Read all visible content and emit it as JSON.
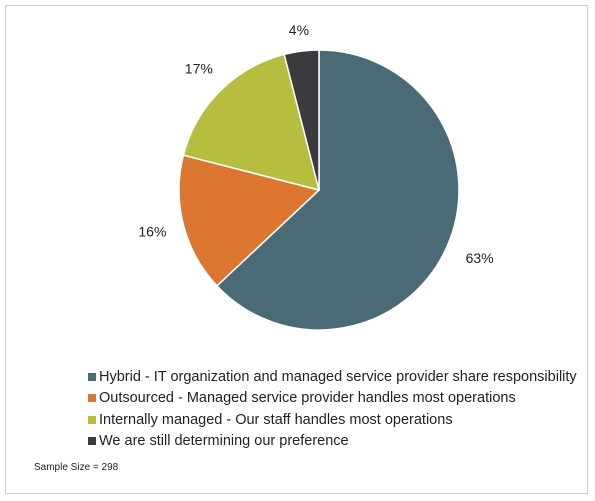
{
  "chart_data": {
    "type": "pie",
    "categories": [
      "Hybrid - IT organization and managed service provider share responsibility",
      "Outsourced - Managed service provider handles most operations",
      "Internally managed - Our staff handles most operations",
      "We are still determining our preference"
    ],
    "values": [
      63,
      16,
      17,
      4
    ],
    "labels": [
      "63%",
      "16%",
      "17%",
      "4%"
    ],
    "colors": [
      "#4a6b76",
      "#dc7630",
      "#b7bd3e",
      "#3a3b3c"
    ],
    "legend_position": "bottom"
  },
  "footnote": "Sample Size = 298"
}
